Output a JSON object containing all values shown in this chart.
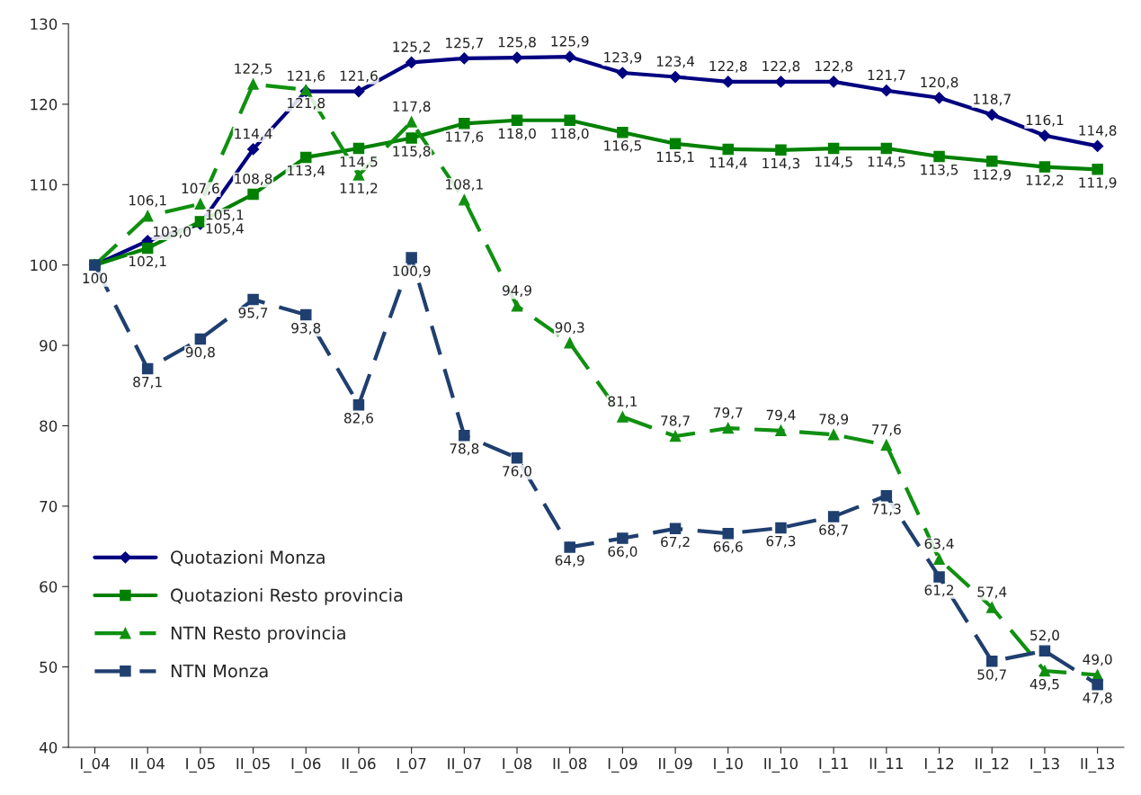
{
  "chart_data": {
    "type": "line",
    "categories": [
      "I_04",
      "II_04",
      "I_05",
      "II_05",
      "I_06",
      "II_06",
      "I_07",
      "II_07",
      "I_08",
      "II_08",
      "I_09",
      "II_09",
      "I_10",
      "II_10",
      "I_11",
      "II_11",
      "I_12",
      "II_12",
      "I_13",
      "II_13"
    ],
    "ylim": [
      40,
      130
    ],
    "yticks": [
      40,
      50,
      60,
      70,
      80,
      90,
      100,
      110,
      120,
      130
    ],
    "grid": false,
    "legend": "bottom left",
    "series": [
      {
        "name": "Quotazioni Monza",
        "color": "#000080",
        "marker": "diamond",
        "line_style": "solid",
        "values": [
          100,
          103.0,
          105.1,
          114.4,
          121.6,
          121.6,
          125.2,
          125.7,
          125.8,
          125.9,
          123.9,
          123.4,
          122.8,
          122.8,
          122.8,
          121.7,
          120.8,
          118.7,
          116.1,
          114.8
        ],
        "value_labels": [
          null,
          "103,0",
          "105,1",
          "114,4",
          "121,6",
          "121,6",
          "125,2",
          "125,7",
          "125,8",
          "125,9",
          "123,9",
          "123,4",
          "122,8",
          "122,8",
          "122,8",
          "121,7",
          "120,8",
          "118,7",
          "116,1",
          "114,8"
        ]
      },
      {
        "name": "Quotazioni Resto provincia",
        "color": "#008000",
        "marker": "square",
        "line_style": "solid",
        "values": [
          100,
          102.1,
          105.4,
          108.8,
          113.4,
          114.5,
          115.8,
          117.6,
          118.0,
          118.0,
          116.5,
          115.1,
          114.4,
          114.3,
          114.5,
          114.5,
          113.5,
          112.9,
          112.2,
          111.9
        ],
        "value_labels": [
          null,
          "102,1",
          "105,4",
          "108,8",
          "113,4",
          "114,5",
          "115,8",
          "117,6",
          "118,0",
          "118,0",
          "116,5",
          "115,1",
          "114,4",
          "114,3",
          "114,5",
          "114,5",
          "113,5",
          "112,9",
          "112,2",
          "111,9"
        ]
      },
      {
        "name": "NTN Resto provincia",
        "color": "#109010",
        "marker": "triangle",
        "line_style": "dashed",
        "values": [
          100,
          106.1,
          107.6,
          122.5,
          121.8,
          111.2,
          117.8,
          108.1,
          94.9,
          90.3,
          81.1,
          78.7,
          79.7,
          79.4,
          78.9,
          77.6,
          63.4,
          57.4,
          49.5,
          49.0
        ],
        "value_labels": [
          null,
          "106,1",
          "107,6",
          "122,5",
          "121,8",
          "111,2",
          "117,8",
          "108,1",
          "94,9",
          "90,3",
          "81,1",
          "78,7",
          "79,7",
          "79,4",
          "78,9",
          "77,6",
          "63,4",
          "57,4",
          "49,5",
          "49,0"
        ]
      },
      {
        "name": "NTN Monza",
        "color": "#1f3f6f",
        "marker": "square",
        "line_style": "dashed",
        "values": [
          100,
          87.1,
          90.8,
          95.7,
          93.8,
          82.6,
          100.9,
          78.8,
          76.0,
          64.9,
          66.0,
          67.2,
          66.6,
          67.3,
          68.7,
          71.3,
          61.2,
          50.7,
          52.0,
          47.8
        ],
        "value_labels": [
          "100",
          "87,1",
          "90,8",
          "95,7",
          "93,8",
          "82,6",
          "100,9",
          "78,8",
          "76,0",
          "64,9",
          "66,0",
          "67,2",
          "66,6",
          "67,3",
          "68,7",
          "71,3",
          "61,2",
          "50,7",
          "52,0",
          "47,8"
        ]
      }
    ]
  }
}
